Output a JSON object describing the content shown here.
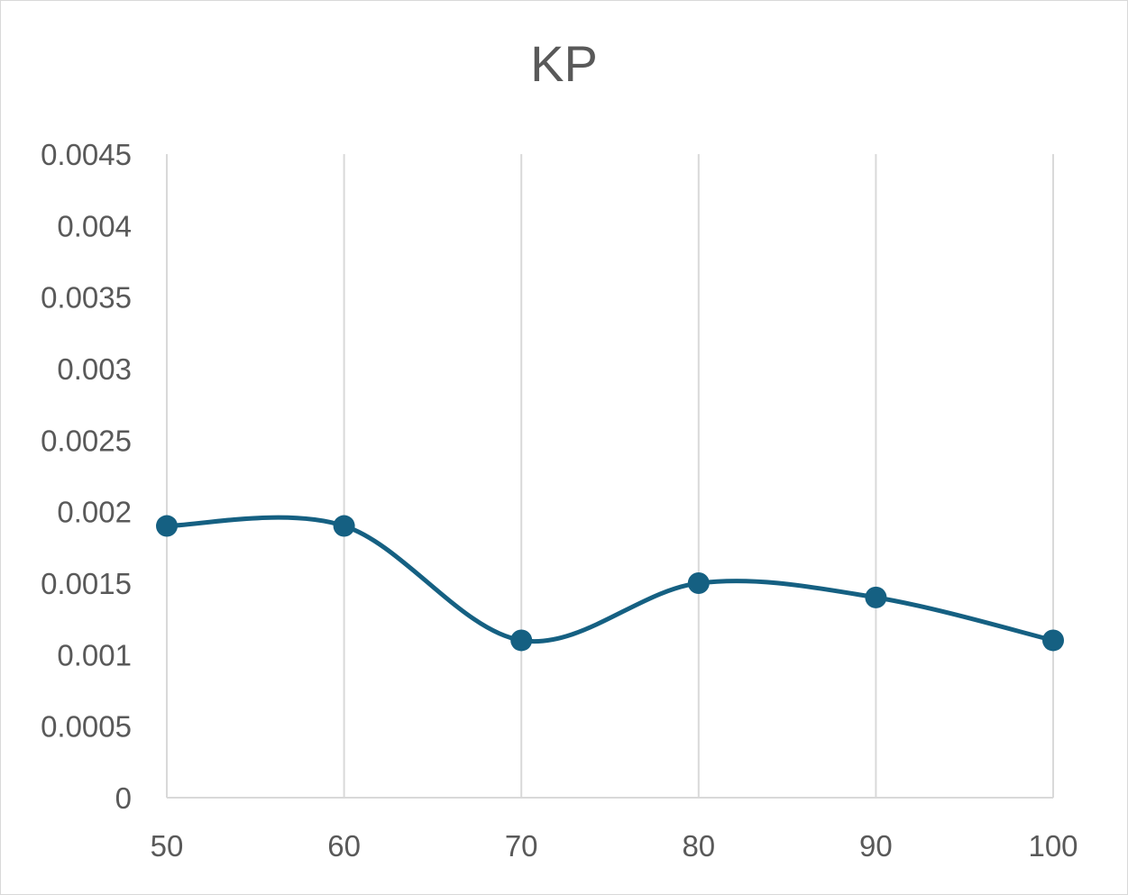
{
  "chart_data": {
    "type": "line",
    "title": "KP",
    "xlabel": "",
    "ylabel": "",
    "x": [
      50,
      60,
      70,
      80,
      90,
      100
    ],
    "x_tick_labels": [
      "50",
      "60",
      "70",
      "80",
      "90",
      "100"
    ],
    "ylim": [
      0,
      0.0045
    ],
    "y_ticks": [
      0,
      0.0005,
      0.001,
      0.0015,
      0.002,
      0.0025,
      0.003,
      0.0035,
      0.004,
      0.0045
    ],
    "y_tick_labels": [
      "0",
      "0.0005",
      "0.001",
      "0.0015",
      "0.002",
      "0.0025",
      "0.003",
      "0.0035",
      "0.004",
      "0.0045"
    ],
    "series": [
      {
        "values": [
          0.0019,
          0.0019,
          0.0011,
          0.0015,
          0.0014,
          0.0011
        ],
        "color": "#156082",
        "smooth": true,
        "markers": true
      }
    ],
    "grid": "vertical",
    "gridline_color": "#d9d9d9",
    "legend": "none"
  }
}
